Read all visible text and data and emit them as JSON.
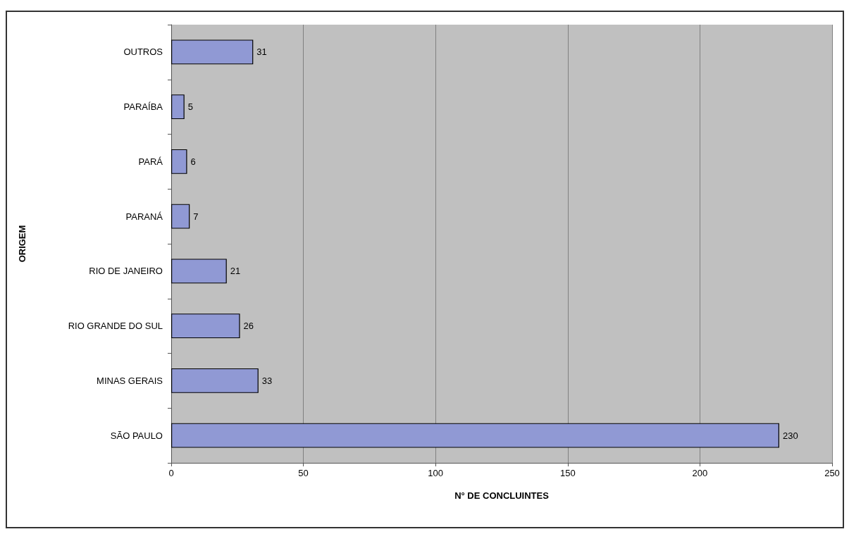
{
  "chart_data": {
    "type": "bar",
    "orientation": "horizontal",
    "xlabel": "N° DE CONCLUINTES",
    "ylabel": "ORIGEM",
    "categories": [
      "OUTROS",
      "PARAÍBA",
      "PARÁ",
      "PARANÁ",
      "RIO DE JANEIRO",
      "RIO GRANDE DO SUL",
      "MINAS GERAIS",
      "SÃO PAULO"
    ],
    "values": [
      31,
      5,
      6,
      7,
      21,
      26,
      33,
      230
    ],
    "color": "#9099d4",
    "xlim": [
      0,
      250
    ],
    "xticks": [
      0,
      50,
      100,
      150,
      200,
      250
    ],
    "grid": "x",
    "data_labels": true
  }
}
